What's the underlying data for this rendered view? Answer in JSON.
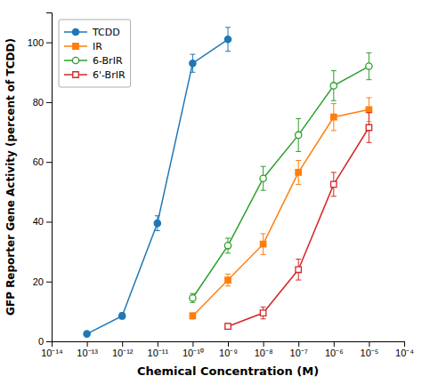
{
  "chart_data": {
    "type": "line",
    "xlabel": "Chemical Concentration (M)",
    "ylabel": "GFP Reporter Gene Activity (percent of TCDD)",
    "log": "x",
    "grid": false,
    "legend": "upper left",
    "xlim": [
      1e-14,
      0.0001
    ],
    "ylim": [
      0,
      110
    ],
    "xticks": [
      {
        "value": 1e-14,
        "label": "10⁻¹⁴"
      },
      {
        "value": 1e-13,
        "label": "10⁻¹³"
      },
      {
        "value": 1e-12,
        "label": "10⁻¹²"
      },
      {
        "value": 1e-11,
        "label": "10⁻¹¹"
      },
      {
        "value": 1e-10,
        "label": "10⁻¹⁰"
      },
      {
        "value": 1e-09,
        "label": "10⁻⁹"
      },
      {
        "value": 1e-08,
        "label": "10⁻⁸"
      },
      {
        "value": 1e-07,
        "label": "10⁻⁷"
      },
      {
        "value": 1e-06,
        "label": "10⁻⁶"
      },
      {
        "value": 1e-05,
        "label": "10⁻⁵"
      },
      {
        "value": 0.0001,
        "label": "10⁻⁴"
      }
    ],
    "yticks": [
      0,
      20,
      40,
      60,
      80,
      100
    ],
    "series": [
      {
        "name": "TCDD",
        "marker": "circle",
        "x": [
          1e-13,
          1e-12,
          1e-11,
          1e-10,
          1e-09
        ],
        "values": [
          2.5,
          8.5,
          39.5,
          93,
          101
        ],
        "yerr": [
          0.5,
          1.0,
          2.5,
          3.0,
          4.0
        ]
      },
      {
        "name": "IR",
        "marker": "square",
        "x": [
          1e-10,
          1e-09,
          1e-08,
          1e-07,
          1e-06,
          1e-05
        ],
        "values": [
          8.5,
          20.5,
          32.5,
          56.5,
          75,
          77.5
        ],
        "yerr": [
          1.0,
          2.0,
          3.5,
          4.0,
          4.5,
          4.0
        ]
      },
      {
        "name": "6-BrIR",
        "marker": "circle-open",
        "x": [
          1e-10,
          1e-09,
          1e-08,
          1e-07,
          1e-06,
          1e-05
        ],
        "values": [
          14.5,
          32.0,
          54.5,
          69.0,
          85.5,
          92.0
        ],
        "yerr": [
          1.5,
          2.5,
          4.0,
          5.5,
          5.0,
          4.5
        ]
      },
      {
        "name": "6'-BrIR",
        "marker": "square-open",
        "x": [
          1e-09,
          1e-08,
          1e-07,
          1e-06,
          1e-05
        ],
        "values": [
          5.0,
          9.5,
          24.0,
          52.5,
          71.5
        ],
        "yerr": [
          1.0,
          2.0,
          3.5,
          4.0,
          5.0
        ]
      }
    ]
  }
}
